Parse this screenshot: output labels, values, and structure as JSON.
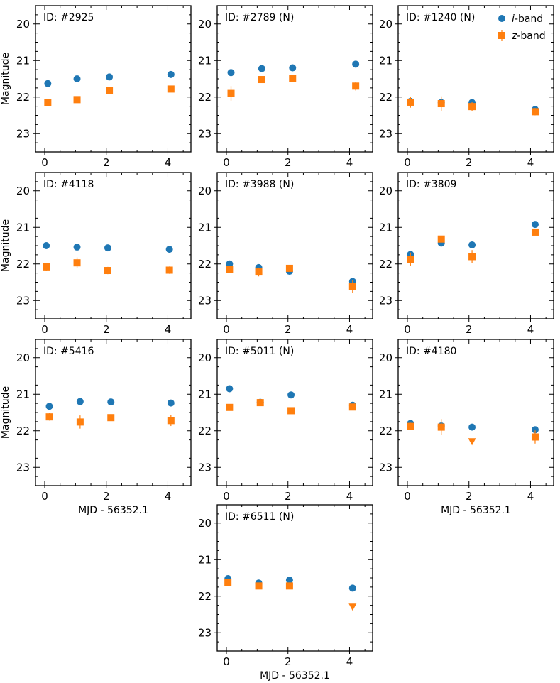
{
  "colors": {
    "i_band": "#1f77b4",
    "z_band": "#ff7f0e"
  },
  "chart_data": {
    "type": "scatter",
    "title": "",
    "xlabel": "MJD - 56352.1",
    "ylabel": "Magnitude",
    "xlim": [
      -0.3,
      4.75
    ],
    "ylim": [
      23.5,
      19.5
    ],
    "y_inverted": true,
    "x_ticks": [
      0,
      2,
      4
    ],
    "y_ticks": [
      20,
      21,
      22,
      23
    ],
    "grid": false,
    "legend": {
      "location": "top-right",
      "panel": "ID: #1240 (N)",
      "entries": [
        {
          "prefix": "i",
          "suffix": "-band",
          "marker": "circle",
          "color": "#1f77b4"
        },
        {
          "prefix": "z",
          "suffix": "-band",
          "marker": "square",
          "color": "#ff7f0e"
        }
      ]
    },
    "panels": [
      {
        "label": "ID: #2925",
        "series": [
          {
            "name": "i-band",
            "x": [
              0.1,
              1.05,
              2.1,
              4.1
            ],
            "y": [
              21.63,
              21.5,
              21.45,
              21.38
            ]
          },
          {
            "name": "z-band",
            "x": [
              0.1,
              1.05,
              2.1,
              4.1
            ],
            "y": [
              22.15,
              22.07,
              21.82,
              21.78
            ],
            "err": [
              0.08,
              0.08,
              0.06,
              0.06
            ]
          }
        ]
      },
      {
        "label": "ID: #2789 (N)",
        "series": [
          {
            "name": "i-band",
            "x": [
              0.15,
              1.15,
              2.15,
              4.2
            ],
            "y": [
              21.33,
              21.22,
              21.2,
              21.1
            ]
          },
          {
            "name": "z-band",
            "x": [
              0.15,
              1.15,
              2.15,
              4.2
            ],
            "y": [
              21.9,
              21.52,
              21.49,
              21.7
            ],
            "err": [
              0.2,
              0.08,
              0.08,
              0.12
            ]
          }
        ]
      },
      {
        "label": "ID: #1240 (N)",
        "series": [
          {
            "name": "i-band",
            "x": [
              0.1,
              1.1,
              2.1,
              4.15
            ],
            "y": [
              22.12,
              22.15,
              22.15,
              22.34
            ]
          },
          {
            "name": "z-band",
            "x": [
              0.1,
              1.1,
              2.1,
              4.15
            ],
            "y": [
              22.14,
              22.18,
              22.26,
              22.4
            ],
            "err": [
              0.15,
              0.2,
              0.12,
              0.1
            ]
          }
        ]
      },
      {
        "label": "ID: #4118",
        "series": [
          {
            "name": "i-band",
            "x": [
              0.05,
              1.05,
              2.05,
              4.05
            ],
            "y": [
              21.5,
              21.54,
              21.56,
              21.6
            ]
          },
          {
            "name": "z-band",
            "x": [
              0.05,
              1.05,
              2.05,
              4.05
            ],
            "y": [
              22.08,
              21.97,
              22.18,
              22.17
            ],
            "err": [
              0.1,
              0.15,
              0.1,
              0.1
            ]
          }
        ]
      },
      {
        "label": "ID: #3988 (N)",
        "series": [
          {
            "name": "i-band",
            "x": [
              0.1,
              1.05,
              2.05,
              4.1
            ],
            "y": [
              22.0,
              22.1,
              22.2,
              22.48
            ]
          },
          {
            "name": "z-band",
            "x": [
              0.1,
              1.05,
              2.05,
              4.1
            ],
            "y": [
              22.15,
              22.22,
              22.12,
              22.62
            ],
            "err": [
              0.1,
              0.12,
              0.08,
              0.18
            ]
          }
        ]
      },
      {
        "label": "ID: #3809",
        "series": [
          {
            "name": "i-band",
            "x": [
              0.1,
              1.1,
              2.1,
              4.15
            ],
            "y": [
              21.74,
              21.43,
              21.48,
              20.92
            ]
          },
          {
            "name": "z-band",
            "x": [
              0.1,
              1.1,
              2.1,
              4.15
            ],
            "y": [
              21.87,
              21.32,
              21.8,
              21.13
            ],
            "err": [
              0.18,
              0.08,
              0.18,
              0.08
            ]
          }
        ]
      },
      {
        "label": "ID: #5416",
        "series": [
          {
            "name": "i-band",
            "x": [
              0.15,
              1.15,
              2.15,
              4.1
            ],
            "y": [
              21.33,
              21.2,
              21.21,
              21.24
            ]
          },
          {
            "name": "z-band",
            "x": [
              0.15,
              1.15,
              2.15,
              4.1
            ],
            "y": [
              21.62,
              21.76,
              21.64,
              21.72
            ],
            "err": [
              0.1,
              0.18,
              0.08,
              0.15
            ]
          }
        ]
      },
      {
        "label": "ID: #5011 (N)",
        "series": [
          {
            "name": "i-band",
            "x": [
              0.1,
              1.1,
              2.1,
              4.1
            ],
            "y": [
              20.85,
              21.22,
              21.02,
              21.3
            ]
          },
          {
            "name": "z-band",
            "x": [
              0.1,
              1.1,
              2.1,
              4.1
            ],
            "y": [
              21.36,
              21.23,
              21.45,
              21.35
            ],
            "err": [
              0.06,
              0.06,
              0.08,
              0.08
            ]
          }
        ]
      },
      {
        "label": "ID: #4180",
        "series": [
          {
            "name": "i-band",
            "x": [
              0.1,
              1.1,
              2.1,
              4.15
            ],
            "y": [
              21.8,
              21.87,
              21.9,
              21.97
            ]
          },
          {
            "name": "z-band",
            "x": [
              0.1,
              1.1,
              4.15
            ],
            "y": [
              21.88,
              21.9,
              22.17
            ],
            "err": [
              0.1,
              0.22,
              0.18
            ]
          },
          {
            "name": "z-band upper limit",
            "x": [
              2.1
            ],
            "y": [
              22.3
            ]
          }
        ]
      },
      {
        "label": "ID: #6511 (N)",
        "series": [
          {
            "name": "i-band",
            "x": [
              0.05,
              1.05,
              2.05,
              4.1
            ],
            "y": [
              21.52,
              21.64,
              21.56,
              21.78
            ]
          },
          {
            "name": "z-band",
            "x": [
              0.05,
              1.05,
              2.05
            ],
            "y": [
              21.62,
              21.72,
              21.72
            ],
            "err": [
              0.08,
              0.08,
              0.08
            ]
          },
          {
            "name": "z-band upper limit",
            "x": [
              4.1
            ],
            "y": [
              22.3
            ]
          }
        ]
      }
    ]
  }
}
